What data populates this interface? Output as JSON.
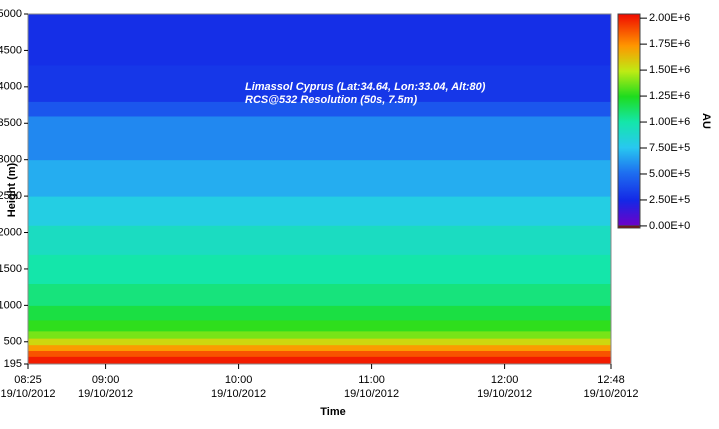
{
  "chart_data": {
    "type": "heatmap",
    "annotations": [
      "Limassol Cyprus (Lat:34.64, Lon:33.04, Alt:80)",
      "RCS@532 Resolution (50s, 7.5m)"
    ],
    "x_label": "Time",
    "y_label": "Height (m)",
    "colorbar_label": "AU",
    "xlim": [
      505,
      768
    ],
    "xticks": [
      {
        "value": 505,
        "label": "08:25"
      },
      {
        "value": 540,
        "label": "09:00"
      },
      {
        "value": 600,
        "label": "10:00"
      },
      {
        "value": 660,
        "label": "11:00"
      },
      {
        "value": 720,
        "label": "12:00"
      },
      {
        "value": 768,
        "label": "12:48"
      }
    ],
    "x_date": "19/10/2012",
    "ylim": [
      195,
      5000
    ],
    "yticks": [
      195,
      500,
      1000,
      1500,
      2000,
      2500,
      3000,
      3500,
      4000,
      4500,
      5000
    ],
    "height_edges": [
      195,
      300,
      380,
      460,
      550,
      650,
      800,
      1000,
      1300,
      1700,
      2100,
      2500,
      3000,
      3600,
      3800,
      4300,
      5000
    ],
    "values": [
      2000000,
      1880000,
      1720000,
      1550000,
      1380000,
      1270000,
      1180000,
      1080000,
      1000000,
      920000,
      800000,
      680000,
      580000,
      420000,
      300000,
      270000
    ],
    "clim": [
      -20000,
      2040000
    ],
    "cticks": [
      {
        "value": 2000000,
        "label": "2.00E+6"
      },
      {
        "value": 1750000,
        "label": "1.75E+6"
      },
      {
        "value": 1500000,
        "label": "1.50E+6"
      },
      {
        "value": 1250000,
        "label": "1.25E+6"
      },
      {
        "value": 1000000,
        "label": "1.00E+6"
      },
      {
        "value": 750000,
        "label": "7.50E+5"
      },
      {
        "value": 500000,
        "label": "5.00E+5"
      },
      {
        "value": 250000,
        "label": "2.50E+5"
      },
      {
        "value": 0,
        "label": "0.00E+0"
      }
    ]
  }
}
